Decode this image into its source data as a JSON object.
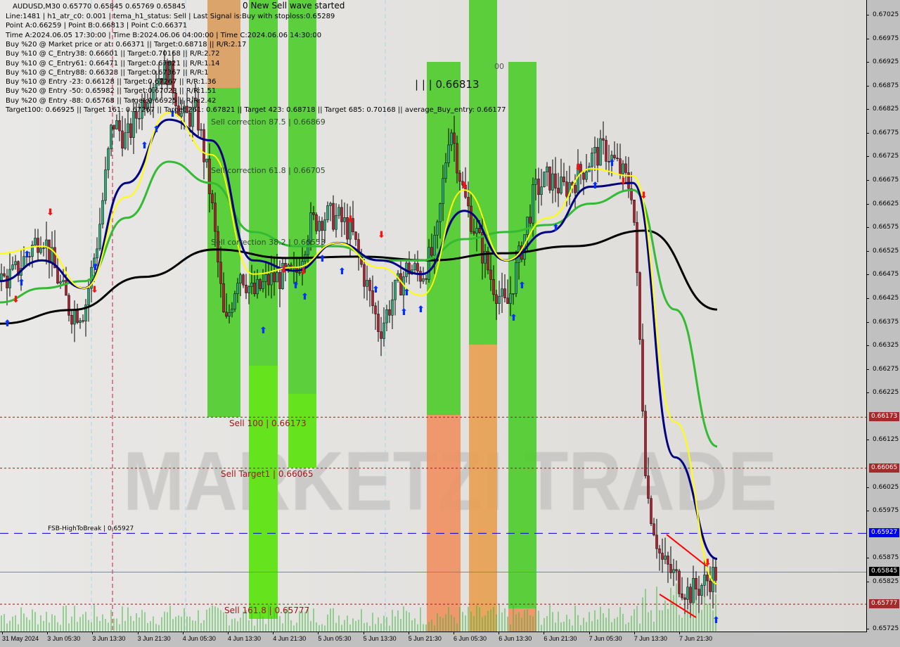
{
  "header": {
    "symbol_line": "AUDUSD,M30  0.65770 0.65845 0.65769 0.65845",
    "wave_status": "0 New Sell wave started",
    "info_lines": [
      "Line:1481 | h1_atr_c0: 0.001 | tema_h1_status: Sell | Last Signal is:Buy with stoploss:0.65289",
      "Point A:0.66259 | Point B:0.66813 | Point C:0.66371",
      "Time A:2024.06.05 17:30:00 | Time B:2024.06.06 04:00:00 | Time C:2024.06.06 14:30:00",
      "Buy %20 @ Market price or at: 0.66371 || Target:0.68718 || R/R:2.17",
      "Buy %10 @ C_Entry38: 0.66601 || Target:0.70168 || R/R:2.72",
      "Buy %10 @ C_Entry61: 0.66471 || Target:0.67821 || R/R:1.14",
      "Buy %10 @ C_Entry88: 0.66328 || Target:0.67367 || R/R:1",
      "Buy %10 @ Entry -23: 0.66128 || Target:0.67267 || R/R:1.36",
      "Buy %20 @ Entry -50: 0.65982 || Target:0.67023 || R/R:1.51",
      "Buy %20 @ Entry -88: 0.65768 || Target:0.66925 || R/R:2.42",
      "Target100: 0.66925 || Target 161: 0.67267 || Target 261: 0.67821 || Target 423: 0.68718 || Target 685: 0.70168 || average_Buy_entry: 0.66177"
    ]
  },
  "annotations": {
    "point_b": "| | | 0.66813",
    "partial": "00",
    "corrections": [
      "Sell correction 87.5 | 0.66869",
      "Sell correction 61.8 | 0.66705",
      "Sell correction 38.2 | 0.66553"
    ],
    "levels": [
      {
        "label": "Sell 100 | 0.66173",
        "price": 0.66173,
        "color": "#a01818"
      },
      {
        "label": "Sell Target1 | 0.66065",
        "price": 0.66065,
        "color": "#a01818"
      },
      {
        "label": "FSB-HighToBreak | 0.65927",
        "price": 0.65927,
        "color": "#0000cc"
      },
      {
        "label": "Sell 161.8 | 0.65777",
        "price": 0.65777,
        "color": "#a01818"
      }
    ],
    "watermark": "MARKETZI TRADE"
  },
  "chart_data": {
    "type": "candlestick",
    "title": "AUDUSD,M30",
    "ylim": [
      0.657,
      0.6705
    ],
    "y_ticks": [
      "0.67025",
      "0.66975",
      "0.66925",
      "0.66875",
      "0.66825",
      "0.66775",
      "0.66725",
      "0.66675",
      "0.66625",
      "0.66575",
      "0.66525",
      "0.66475",
      "0.66425",
      "0.66375",
      "0.66325",
      "0.66275",
      "0.66225",
      "0.66125",
      "0.66025",
      "0.65975",
      "0.65875",
      "0.65825",
      "0.65725"
    ],
    "price_tags": [
      {
        "value": "0.66173",
        "color": "#a52a2a"
      },
      {
        "value": "0.66065",
        "color": "#a52a2a"
      },
      {
        "value": "0.65927",
        "color": "#0000ff"
      },
      {
        "value": "0.65845",
        "color": "#000000"
      },
      {
        "value": "0.65777",
        "color": "#a52a2a"
      }
    ],
    "x_ticks": [
      "31 May 2024",
      "3 Jun 05:30",
      "3 Jun 13:30",
      "3 Jun 21:30",
      "4 Jun 05:30",
      "4 Jun 13:30",
      "4 Jun 21:30",
      "5 Jun 05:30",
      "5 Jun 13:30",
      "5 Jun 21:30",
      "6 Jun 05:30",
      "6 Jun 13:30",
      "6 Jun 21:30",
      "7 Jun 05:30",
      "7 Jun 13:30",
      "7 Jun 21:30"
    ],
    "close_samples": [
      0.66461,
      0.66475,
      0.6652,
      0.66565,
      0.66476,
      0.66396,
      0.664,
      0.6656,
      0.668,
      0.66759,
      0.66833,
      0.66892,
      0.66907,
      0.66803,
      0.66818,
      0.66639,
      0.66356,
      0.6649,
      0.66431,
      0.66461,
      0.6647,
      0.6647,
      0.6658,
      0.666,
      0.66595,
      0.66565,
      0.66461,
      0.66356,
      0.66431,
      0.6649,
      0.66475,
      0.66535,
      0.668,
      0.66639,
      0.6655,
      0.6646,
      0.66401,
      0.6652,
      0.6665,
      0.6668,
      0.66654,
      0.6668,
      0.6672,
      0.6674,
      0.667,
      0.6665,
      0.66014,
      0.6587,
      0.65835,
      0.658,
      0.6582,
      0.65845
    ],
    "series": [
      {
        "color": "#000000",
        "values": [
          0.66371,
          0.664,
          0.6647,
          0.66528,
          0.6651,
          0.66513,
          0.66505,
          0.6652,
          0.66535,
          0.66568,
          0.66401
        ]
      },
      {
        "color": "#33bb33",
        "values": [
          0.66416,
          0.66446,
          0.66461,
          0.66595,
          0.66714,
          0.66669,
          0.66565,
          0.66535,
          0.66535,
          0.66505,
          0.66505,
          0.6655,
          0.66565,
          0.6658,
          0.66625,
          0.66654,
          0.66401,
          0.66111
        ]
      },
      {
        "color": "#000080",
        "values": [
          0.66461,
          0.66505,
          0.66446,
          0.66669,
          0.66803,
          0.66759,
          0.66505,
          0.66483,
          0.66542,
          0.66505,
          0.66476,
          0.6661,
          0.66505,
          0.66565,
          0.66661,
          0.66669,
          0.66088,
          0.65873
        ]
      },
      {
        "color": "#ffff00",
        "values": [
          0.6652,
          0.66535,
          0.66446,
          0.66639,
          0.66818,
          0.66729,
          0.66476,
          0.6649,
          0.66542,
          0.6649,
          0.66431,
          0.66654,
          0.66505,
          0.66595,
          0.66699,
          0.66684,
          0.66163,
          0.6582
        ]
      }
    ],
    "grid": false
  }
}
